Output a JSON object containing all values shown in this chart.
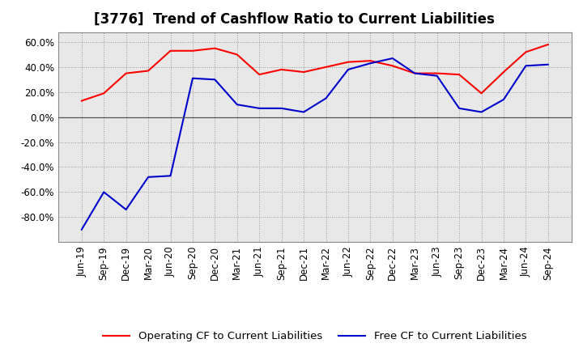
{
  "title": "[3776]  Trend of Cashflow Ratio to Current Liabilities",
  "x_labels": [
    "Jun-19",
    "Sep-19",
    "Dec-19",
    "Mar-20",
    "Jun-20",
    "Sep-20",
    "Dec-20",
    "Mar-21",
    "Jun-21",
    "Sep-21",
    "Dec-21",
    "Mar-22",
    "Jun-22",
    "Sep-22",
    "Dec-22",
    "Mar-23",
    "Jun-23",
    "Sep-23",
    "Dec-23",
    "Mar-24",
    "Jun-24",
    "Sep-24"
  ],
  "operating_cf": [
    13.0,
    19.0,
    35.0,
    37.0,
    53.0,
    53.0,
    55.0,
    50.0,
    34.0,
    38.0,
    36.0,
    40.0,
    44.0,
    45.0,
    41.0,
    35.0,
    35.0,
    34.0,
    19.0,
    36.0,
    52.0,
    58.0
  ],
  "free_cf": [
    -90.0,
    -60.0,
    -74.0,
    -48.0,
    -47.0,
    31.0,
    30.0,
    10.0,
    7.0,
    7.0,
    4.0,
    15.0,
    38.0,
    43.0,
    47.0,
    35.0,
    33.0,
    7.0,
    4.0,
    14.0,
    41.0,
    42.0
  ],
  "operating_color": "#ff0000",
  "free_color": "#0000cc",
  "ylim": [
    -100.0,
    68.0
  ],
  "yticks": [
    -80.0,
    -60.0,
    -40.0,
    -20.0,
    0.0,
    20.0,
    40.0,
    60.0
  ],
  "plot_bg_color": "#e8e8e8",
  "fig_bg_color": "#ffffff",
  "grid_color": "#999999",
  "zero_line_color": "#555555",
  "legend_operating": "Operating CF to Current Liabilities",
  "legend_free": "Free CF to Current Liabilities",
  "title_fontsize": 12,
  "axis_fontsize": 8.5,
  "legend_fontsize": 9.5
}
